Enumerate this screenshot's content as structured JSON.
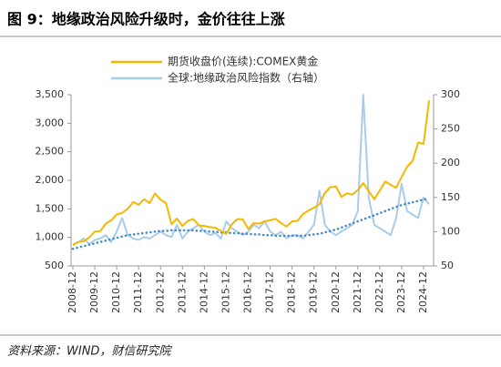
{
  "chart_data": {
    "type": "line",
    "title": "图 9：地缘政治风险升级时，金价往往上涨",
    "source": "资料来源：WIND，财信研究院",
    "categories": [
      "2008-12",
      null,
      null,
      null,
      "2009-12",
      null,
      null,
      null,
      "2010-12",
      null,
      null,
      null,
      "2011-12",
      null,
      null,
      null,
      "2012-12",
      null,
      null,
      null,
      "2013-12",
      null,
      null,
      null,
      "2014-12",
      null,
      null,
      null,
      "2015-12",
      null,
      null,
      null,
      "2016-12",
      null,
      null,
      null,
      "2017-12",
      null,
      null,
      null,
      "2018-12",
      null,
      null,
      null,
      "2019-12",
      null,
      null,
      null,
      "2020-12",
      null,
      null,
      null,
      "2021-12",
      null,
      null,
      null,
      "2022-12",
      null,
      null,
      null,
      "2023-12",
      null,
      null,
      null,
      "2024-12",
      null
    ],
    "series": [
      {
        "name": "期货收盘价(连续):COMEX黄金",
        "color": "#f5b800",
        "values": [
          870,
          920,
          930,
          1000,
          1100,
          1110,
          1240,
          1300,
          1400,
          1430,
          1500,
          1620,
          1570,
          1670,
          1600,
          1770,
          1660,
          1600,
          1230,
          1330,
          1200,
          1290,
          1320,
          1210,
          1200,
          1180,
          1170,
          1115,
          1060,
          1230,
          1320,
          1315,
          1150,
          1250,
          1240,
          1280,
          1300,
          1325,
          1250,
          1190,
          1280,
          1290,
          1410,
          1470,
          1520,
          1580,
          1780,
          1880,
          1890,
          1710,
          1770,
          1750,
          1830,
          1950,
          1810,
          1670,
          1820,
          1980,
          1920,
          1870,
          2060,
          2240,
          2340,
          2660,
          2640,
          3400
        ]
      },
      {
        "name": "全球:地缘政治风险指数（右轴）",
        "color": "#a9cde8",
        "axis": "y2",
        "values": [
          80,
          85,
          90,
          82,
          88,
          90,
          95,
          85,
          100,
          120,
          95,
          90,
          88,
          92,
          90,
          95,
          100,
          95,
          92,
          110,
          90,
          100,
          105,
          110,
          100,
          95,
          98,
          90,
          115,
          105,
          100,
          95,
          100,
          110,
          105,
          115,
          100,
          95,
          100,
          90,
          95,
          95,
          90,
          100,
          110,
          160,
          110,
          100,
          95,
          100,
          105,
          110,
          130,
          300,
          150,
          110,
          105,
          100,
          95,
          120,
          170,
          130,
          125,
          120,
          150,
          140
        ]
      },
      {
        "color": "#4a8bc4",
        "axis": "y2",
        "style": "dotted",
        "values": [
          75,
          77,
          79,
          81,
          83,
          85,
          87,
          89,
          91,
          93,
          95,
          96,
          97,
          98,
          99,
          100,
          101,
          101,
          102,
          102,
          102,
          102,
          102,
          101,
          101,
          100,
          100,
          99,
          99,
          98,
          98,
          97,
          97,
          96,
          96,
          95,
          95,
          94,
          94,
          94,
          94,
          94,
          94,
          95,
          96,
          97,
          99,
          101,
          103,
          106,
          109,
          112,
          115,
          118,
          121,
          124,
          127,
          130,
          133,
          136,
          139,
          141,
          143,
          145,
          147,
          148
        ]
      }
    ],
    "ylim": [
      500,
      3500
    ],
    "yticks": [
      500,
      {
        "value": 1000,
        "label": "1,000"
      },
      {
        "value": 1500,
        "label": "1,500"
      },
      {
        "value": 2000,
        "label": "2,000"
      },
      {
        "value": 2500,
        "label": "2,500"
      },
      {
        "value": 3000,
        "label": "3,000"
      },
      {
        "value": 3500,
        "label": "3,500"
      }
    ],
    "y2lim": [
      50,
      300
    ],
    "y2ticks": [
      50,
      100,
      150,
      200,
      250,
      300
    ],
    "legend": "top"
  }
}
